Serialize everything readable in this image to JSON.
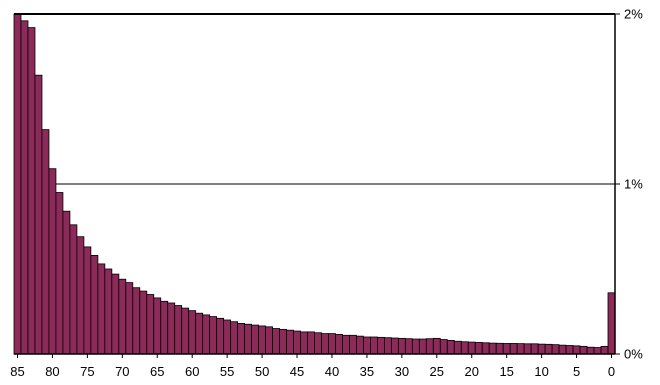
{
  "chart_data": {
    "type": "bar",
    "title": "",
    "xlabel": "",
    "ylabel": "",
    "x_axis_reversed": true,
    "y_axis_side": "right",
    "ylim": [
      0,
      2
    ],
    "grid": "horizontal gridline at 1%",
    "bar_color": "#8c2b5a",
    "bar_edge_color": "#000000",
    "x_tick_labels": [
      "85",
      "80",
      "75",
      "70",
      "65",
      "60",
      "55",
      "50",
      "45",
      "40",
      "35",
      "30",
      "25",
      "20",
      "15",
      "10",
      "5",
      "0"
    ],
    "y_tick_labels": [
      "2%",
      "1%",
      "0%"
    ],
    "y_tick_values": [
      2,
      1,
      0
    ],
    "categories": [
      85,
      84,
      83,
      82,
      81,
      80,
      79,
      78,
      77,
      76,
      75,
      74,
      73,
      72,
      71,
      70,
      69,
      68,
      67,
      66,
      65,
      64,
      63,
      62,
      61,
      60,
      59,
      58,
      57,
      56,
      55,
      54,
      53,
      52,
      51,
      50,
      49,
      48,
      47,
      46,
      45,
      44,
      43,
      42,
      41,
      40,
      39,
      38,
      37,
      36,
      35,
      34,
      33,
      32,
      31,
      30,
      29,
      28,
      27,
      26,
      25,
      24,
      23,
      22,
      21,
      20,
      19,
      18,
      17,
      16,
      15,
      14,
      13,
      12,
      11,
      10,
      9,
      8,
      7,
      6,
      5,
      4,
      3,
      2,
      1,
      0
    ],
    "values": [
      2.0,
      1.96,
      1.92,
      1.64,
      1.32,
      1.09,
      0.95,
      0.84,
      0.76,
      0.69,
      0.63,
      0.58,
      0.53,
      0.5,
      0.47,
      0.44,
      0.42,
      0.39,
      0.37,
      0.35,
      0.33,
      0.31,
      0.3,
      0.285,
      0.27,
      0.255,
      0.24,
      0.23,
      0.22,
      0.21,
      0.2,
      0.19,
      0.18,
      0.175,
      0.17,
      0.165,
      0.16,
      0.15,
      0.145,
      0.14,
      0.135,
      0.13,
      0.13,
      0.125,
      0.12,
      0.12,
      0.115,
      0.11,
      0.11,
      0.105,
      0.1,
      0.1,
      0.098,
      0.096,
      0.094,
      0.092,
      0.09,
      0.088,
      0.088,
      0.09,
      0.092,
      0.085,
      0.08,
      0.075,
      0.072,
      0.07,
      0.068,
      0.066,
      0.064,
      0.063,
      0.062,
      0.062,
      0.061,
      0.06,
      0.06,
      0.058,
      0.057,
      0.055,
      0.052,
      0.05,
      0.048,
      0.045,
      0.04,
      0.038,
      0.045,
      0.36
    ]
  }
}
